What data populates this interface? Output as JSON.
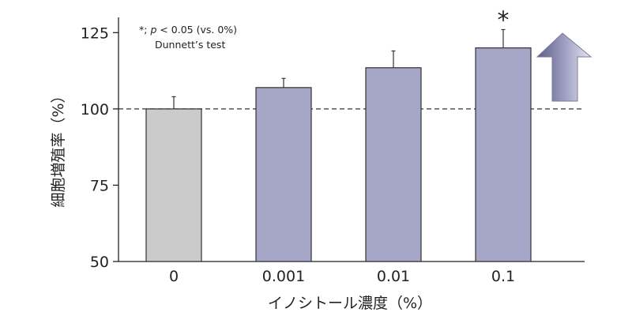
{
  "chart_data": {
    "type": "bar",
    "categories": [
      "0",
      "0.001",
      "0.01",
      "0.1"
    ],
    "values": [
      100,
      107,
      113.5,
      120
    ],
    "error": [
      4,
      3,
      5.5,
      6
    ],
    "colors": [
      "#cbcbcb",
      "#a6a6c8",
      "#a6a6c8",
      "#a6a6c8"
    ],
    "edge_color": "#333333",
    "xlabel": "イノシトール濃度（%）",
    "ylabel": "細胞増殖率（%）",
    "ylim": [
      50,
      130
    ],
    "yticks": [
      50,
      75,
      100,
      125
    ],
    "reference_line": 100,
    "significance": [
      {
        "category": "0.1",
        "mark": "*"
      }
    ],
    "note": {
      "line1_prefix": "*; ",
      "line1_p": "p",
      "line1_suffix": " < 0.05 (vs. 0%)",
      "line2": "Dunnett’s test"
    },
    "arrow": {
      "direction": "up",
      "color": "#8585ad"
    }
  }
}
